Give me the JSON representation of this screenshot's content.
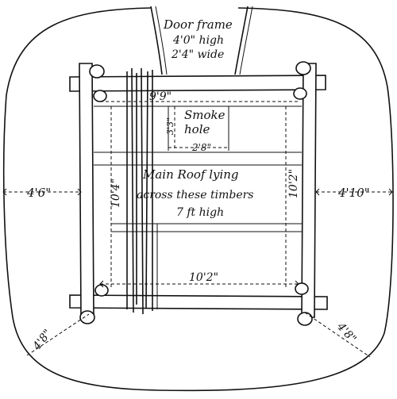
{
  "diagram": {
    "labels": {
      "door_frame": "Door frame",
      "door_height": "4'0\" high",
      "door_width": "2'4\" wide",
      "smoke_hole_width_top": "9'9\"",
      "smoke_hole": "Smoke",
      "smoke_hole_2": "hole",
      "smoke_hole_depth": "3'3\"",
      "smoke_hole_width": "2'8\"",
      "roof_line1": "Main Roof lying",
      "roof_line2": "across these timbers",
      "roof_line3": "7 ft high",
      "left_height": "10'4\"",
      "right_height": "10'2\"",
      "bottom_width": "10'2\"",
      "left_gap": "4'6\"",
      "right_gap": "4'10\"",
      "corner_bl": "4'8\"",
      "corner_br": "4'8\""
    }
  }
}
